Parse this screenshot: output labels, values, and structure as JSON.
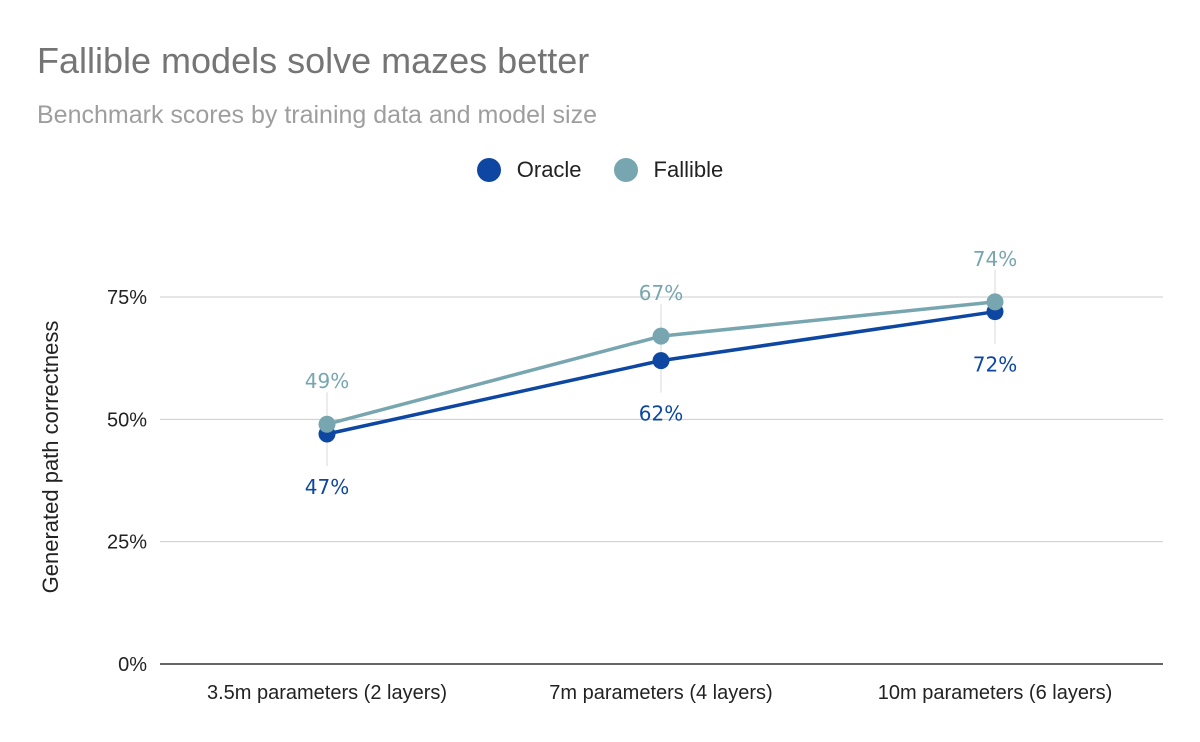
{
  "title": "Fallible models solve mazes better",
  "subtitle": "Benchmark scores by training data and model size",
  "chart_data": {
    "type": "line",
    "categories": [
      "3.5m parameters (2 layers)",
      "7m parameters (4 layers)",
      "10m parameters (6 layers)"
    ],
    "series": [
      {
        "name": "Oracle",
        "color": "#0d47a1",
        "values": [
          47,
          62,
          72
        ],
        "labels": [
          "47%",
          "62%",
          "72%"
        ],
        "label_position": "below"
      },
      {
        "name": "Fallible",
        "color": "#78a6b0",
        "values": [
          49,
          67,
          74
        ],
        "labels": [
          "49%",
          "67%",
          "74%"
        ],
        "label_position": "above"
      }
    ],
    "ylabel": "Generated path correctness",
    "xlabel": "",
    "ylim": [
      0,
      75
    ],
    "yticks": [
      0,
      25,
      50,
      75
    ],
    "ytick_labels": [
      "0%",
      "25%",
      "50%",
      "75%"
    ],
    "grid": true,
    "legend_position": "top-center"
  }
}
